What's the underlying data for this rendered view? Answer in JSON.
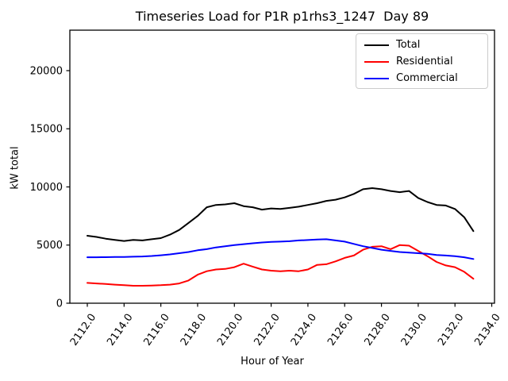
{
  "figure": {
    "background": "#ffffff",
    "spine_color": "#000000"
  },
  "chart_data": {
    "type": "line",
    "title": "Timeseries Load for P1R p1rhs3_1247  Day 89",
    "xlabel": "Hour of Year",
    "ylabel": "kW total",
    "grid": false,
    "legend": {
      "position": "upper right",
      "entries": [
        "Total",
        "Residential",
        "Commercial"
      ]
    },
    "xlim": [
      2111.05,
      2134.15
    ],
    "ylim": [
      0,
      23480
    ],
    "x_tick_rotation": -55,
    "xticks": {
      "values": [
        2112,
        2114,
        2116,
        2118,
        2120,
        2122,
        2124,
        2126,
        2128,
        2130,
        2132,
        2134
      ],
      "labels": [
        "2112.0",
        "2114.0",
        "2116.0",
        "2118.0",
        "2120.0",
        "2122.0",
        "2124.0",
        "2126.0",
        "2128.0",
        "2130.0",
        "2132.0",
        "2134.0"
      ]
    },
    "yticks": {
      "values": [
        0,
        5000,
        10000,
        15000,
        20000
      ],
      "labels": [
        "0",
        "5000",
        "10000",
        "15000",
        "20000"
      ]
    },
    "x": [
      2112.0,
      2112.5,
      2113.0,
      2113.5,
      2114.0,
      2114.5,
      2115.0,
      2115.5,
      2116.0,
      2116.5,
      2117.0,
      2117.5,
      2118.0,
      2118.5,
      2119.0,
      2119.5,
      2120.0,
      2120.5,
      2121.0,
      2121.5,
      2122.0,
      2122.5,
      2123.0,
      2123.5,
      2124.0,
      2124.5,
      2125.0,
      2125.5,
      2126.0,
      2126.5,
      2127.0,
      2127.5,
      2128.0,
      2128.5,
      2129.0,
      2129.5,
      2130.0,
      2130.5,
      2131.0,
      2131.5,
      2132.0,
      2132.5,
      2133.0
    ],
    "series": [
      {
        "name": "Total",
        "color": "#000000",
        "values": [
          5800,
          5700,
          5550,
          5450,
          5350,
          5450,
          5400,
          5500,
          5600,
          5900,
          6300,
          6900,
          7500,
          8250,
          8450,
          8500,
          8600,
          8350,
          8250,
          8050,
          8150,
          8100,
          8200,
          8300,
          8450,
          8600,
          8800,
          8900,
          9100,
          9400,
          9800,
          9900,
          9800,
          9650,
          9550,
          9650,
          9050,
          8700,
          8450,
          8400,
          8100,
          7400,
          6200
        ]
      },
      {
        "name": "Residential",
        "color": "#ff0000",
        "values": [
          1750,
          1700,
          1650,
          1600,
          1550,
          1500,
          1500,
          1520,
          1550,
          1600,
          1700,
          1950,
          2450,
          2750,
          2900,
          2950,
          3100,
          3400,
          3150,
          2900,
          2800,
          2750,
          2800,
          2750,
          2900,
          3300,
          3350,
          3600,
          3900,
          4100,
          4600,
          4850,
          4900,
          4650,
          5000,
          4950,
          4500,
          4050,
          3550,
          3250,
          3100,
          2700,
          2100
        ]
      },
      {
        "name": "Commercial",
        "color": "#0000ff",
        "values": [
          3950,
          3950,
          3960,
          3970,
          3980,
          4000,
          4020,
          4060,
          4120,
          4200,
          4300,
          4400,
          4550,
          4650,
          4800,
          4900,
          5000,
          5080,
          5150,
          5220,
          5270,
          5300,
          5330,
          5400,
          5430,
          5480,
          5500,
          5400,
          5300,
          5100,
          4900,
          4750,
          4600,
          4500,
          4400,
          4350,
          4300,
          4250,
          4150,
          4100,
          4050,
          3950,
          3800
        ]
      }
    ]
  }
}
